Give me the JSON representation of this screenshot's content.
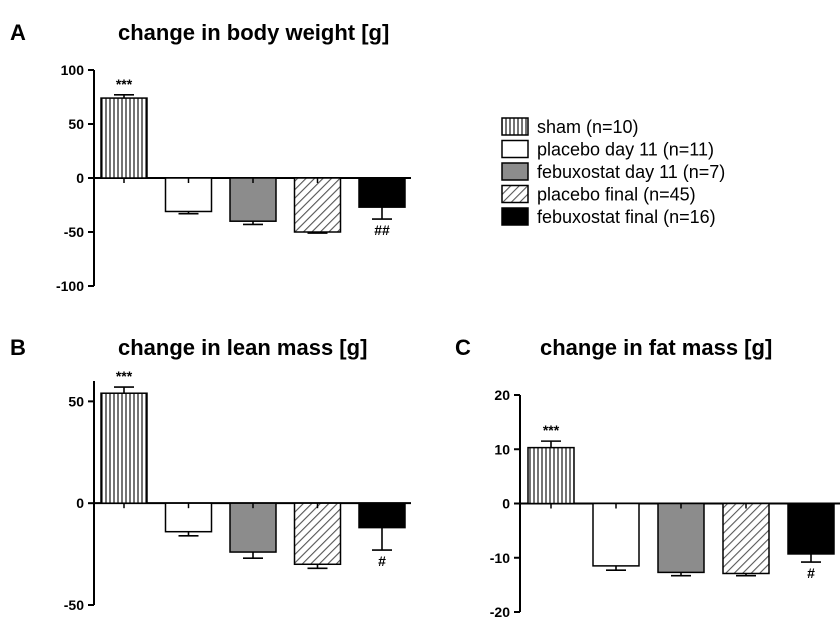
{
  "figure": {
    "legend": [
      {
        "label": "sham (n=10)",
        "fill": "vstripe"
      },
      {
        "label": "placebo day 11 (n=11)",
        "fill": "white"
      },
      {
        "label": "febuxostat day 11 (n=7)",
        "fill": "gray"
      },
      {
        "label": "placebo final (n=45)",
        "fill": "diag"
      },
      {
        "label": "febuxostat final (n=16)",
        "fill": "black"
      }
    ],
    "colors": {
      "gray": "#8c8c8c",
      "black": "#000000",
      "white": "#ffffff"
    }
  },
  "chart_data": [
    {
      "type": "bar",
      "panel": "A",
      "title": "change in body weight [g]",
      "categories": [
        "sham (n=10)",
        "placebo day 11 (n=11)",
        "febuxostat day 11 (n=7)",
        "placebo final (n=45)",
        "febuxostat final (n=16)"
      ],
      "values": [
        74,
        -31,
        -40,
        -50,
        -27
      ],
      "errors": [
        3,
        2,
        3,
        1,
        11
      ],
      "significance": [
        "***",
        "",
        "",
        "",
        "##"
      ],
      "ylim": [
        -100,
        100
      ],
      "yticks": [
        100,
        50,
        0,
        -50,
        -100
      ],
      "ytick_labels": [
        "100",
        "50",
        "0",
        "-50",
        "-100"
      ],
      "xlabel": "",
      "ylabel": ""
    },
    {
      "type": "bar",
      "panel": "B",
      "title": "change in lean mass [g]",
      "categories": [
        "sham (n=10)",
        "placebo day 11 (n=11)",
        "febuxostat day 11 (n=7)",
        "placebo final (n=45)",
        "febuxostat final (n=16)"
      ],
      "values": [
        54,
        -14,
        -24,
        -30,
        -12
      ],
      "errors": [
        3,
        2,
        3,
        2,
        11
      ],
      "significance": [
        "***",
        "",
        "",
        "",
        "#"
      ],
      "ylim": [
        -50,
        60
      ],
      "yticks": [
        50,
        0,
        -50
      ],
      "ytick_labels": [
        "50",
        "0",
        "-50"
      ],
      "xlabel": "",
      "ylabel": ""
    },
    {
      "type": "bar",
      "panel": "C",
      "title": "change in fat mass [g]",
      "categories": [
        "sham (n=10)",
        "placebo day 11 (n=11)",
        "febuxostat day 11 (n=7)",
        "placebo final (n=45)",
        "febuxostat final (n=16)"
      ],
      "values": [
        10.3,
        -11.5,
        -12.7,
        -12.9,
        -9.3
      ],
      "errors": [
        1.2,
        0.8,
        0.6,
        0.4,
        1.5
      ],
      "significance": [
        "***",
        "",
        "",
        "",
        "#"
      ],
      "ylim": [
        -20,
        20
      ],
      "yticks": [
        20,
        10,
        0,
        -10,
        -20
      ],
      "ytick_labels": [
        "20",
        "10",
        "0",
        "-10",
        "-20"
      ],
      "xlabel": "",
      "ylabel": ""
    }
  ]
}
